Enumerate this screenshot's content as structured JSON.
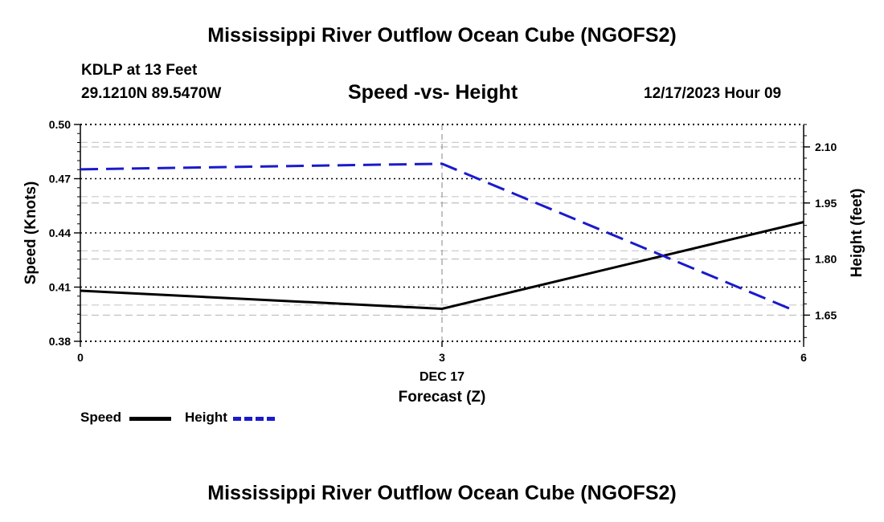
{
  "header": {
    "title": "Mississippi River Outflow Ocean Cube (NGOFS2)",
    "station": "KDLP at 13 Feet",
    "location": "29.1210N  89.5470W",
    "subtitle": "Speed -vs- Height",
    "datetime": "12/17/2023 Hour 09"
  },
  "footer": {
    "title": "Mississippi River Outflow Ocean Cube (NGOFS2)"
  },
  "legend": {
    "items": [
      {
        "label": "Speed",
        "color": "#000000",
        "style": "solid"
      },
      {
        "label": "Height",
        "color": "#1a1acc",
        "style": "dashed"
      }
    ]
  },
  "chart_data": {
    "type": "line",
    "title": "Speed -vs- Height",
    "xlabel": "Forecast (Z)",
    "x_date_label": "DEC 17",
    "x": [
      0,
      3,
      6
    ],
    "xlim": [
      0,
      6
    ],
    "x_ticks": [
      "0",
      "3",
      "6"
    ],
    "left_axis": {
      "label": "Speed (Knots)",
      "lim": [
        0.38,
        0.5
      ],
      "ticks": [
        "0.38",
        "0.41",
        "0.44",
        "0.47",
        "0.50"
      ]
    },
    "right_axis": {
      "label": "Height (feet)",
      "lim": [
        1.58,
        2.16
      ],
      "ticks": [
        "1.65",
        "1.80",
        "1.95",
        "2.10"
      ]
    },
    "series": [
      {
        "name": "Speed",
        "axis": "left",
        "color": "#000000",
        "style": "solid",
        "values": [
          0.408,
          0.398,
          0.446
        ]
      },
      {
        "name": "Height",
        "axis": "right",
        "color": "#1a1acc",
        "style": "dashed",
        "values": [
          2.04,
          2.055,
          1.66
        ]
      }
    ],
    "grid": true
  }
}
